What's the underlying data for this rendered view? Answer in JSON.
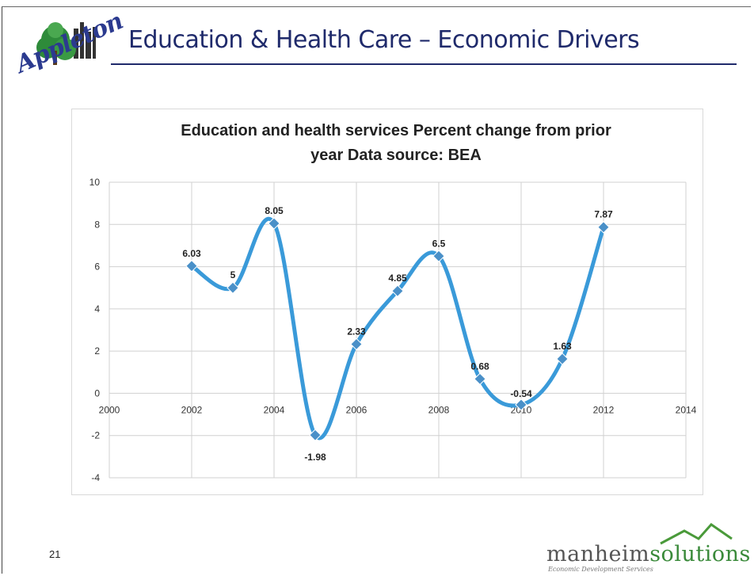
{
  "slide": {
    "title": "Education & Health Care – Economic Drivers",
    "logo_text": "Appleton",
    "slide_number": "21",
    "footer_brand_main": "manheim",
    "footer_brand_accent": "solutions",
    "footer_tagline": "Economic Development Services"
  },
  "colors": {
    "title": "#1f2a6b",
    "series_line": "#3a9ad9",
    "series_marker": "#4a90c8",
    "grid": "#d0d0d0",
    "brand_green": "#3a8a3a"
  },
  "chart_data": {
    "type": "scatter",
    "title_line1": "Education and health services Percent change from prior",
    "title_line2": "year Data source:  BEA",
    "xlim": [
      2000,
      2014
    ],
    "ylim": [
      -4,
      10
    ],
    "x_ticks": [
      "2000",
      "2002",
      "2004",
      "2006",
      "2008",
      "2010",
      "2012",
      "2014"
    ],
    "y_ticks": [
      "10",
      "8",
      "6",
      "4",
      "2",
      "0",
      "-2",
      "-4"
    ],
    "grid": true,
    "smooth_lines": true,
    "series": [
      {
        "x": [
          2002,
          2003,
          2004,
          2005,
          2006,
          2007,
          2008,
          2009,
          2010,
          2011,
          2012
        ],
        "y": [
          6.03,
          5,
          8.05,
          -1.98,
          2.33,
          4.85,
          6.5,
          0.68,
          -0.54,
          1.63,
          7.87
        ],
        "labels": [
          "6.03",
          "5",
          "8.05",
          "-1.98",
          "2.33",
          "4.85",
          "6.5",
          "0.68",
          "-0.54",
          "1.63",
          "7.87"
        ]
      }
    ]
  }
}
